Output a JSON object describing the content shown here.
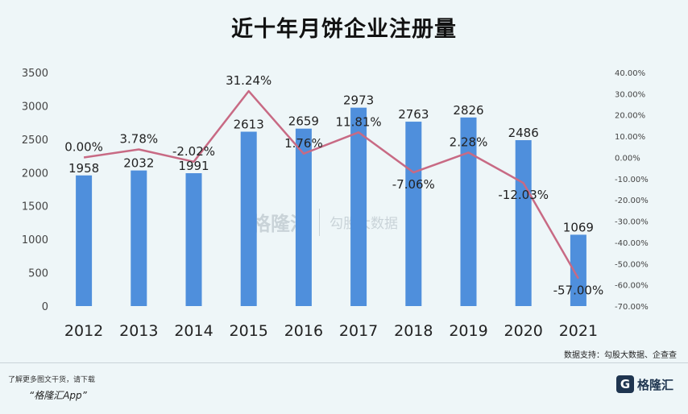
{
  "chart_data": {
    "type": "bar",
    "title": "近十年月饼企业注册量",
    "categories": [
      "2012",
      "2013",
      "2014",
      "2015",
      "2016",
      "2017",
      "2018",
      "2019",
      "2020",
      "2021"
    ],
    "series": [
      {
        "type": "bar",
        "values": [
          1958,
          2032,
          1991,
          2613,
          2659,
          2973,
          2763,
          2826,
          2486,
          1069
        ],
        "color": "#4f8fdc"
      },
      {
        "type": "line",
        "values": [
          0.0,
          3.78,
          -2.02,
          31.24,
          1.76,
          11.81,
          -7.06,
          2.28,
          -12.03,
          -57.0
        ],
        "labels": [
          "0.00%",
          "3.78%",
          "-2.02%",
          "31.24%",
          "1.76%",
          "11.81%",
          "-7.06%",
          "2.28%",
          "-12.03%",
          "-57.00%"
        ],
        "color": "#c86a84"
      }
    ],
    "ylim": [
      0,
      3500
    ],
    "y_ticks": [
      "0",
      "500",
      "1000",
      "1500",
      "2000",
      "2500",
      "3000",
      "3500"
    ],
    "y2lim": [
      -70,
      40
    ],
    "y2_ticks": [
      "-70.00%",
      "-60.00%",
      "-50.00%",
      "-40.00%",
      "-30.00%",
      "-20.00%",
      "-10.00%",
      "0.00%",
      "10.00%",
      "20.00%",
      "30.00%",
      "40.00%"
    ],
    "grid": false,
    "legend": "none"
  },
  "source_note": "数据支持：勾股大数据、企查查",
  "watermark": {
    "brand": "格隆汇",
    "partner": "勾股大数据"
  },
  "footer": {
    "promo": "了解更多图文干货，请下载",
    "app": "“格隆汇App”",
    "brand": "格隆汇"
  }
}
